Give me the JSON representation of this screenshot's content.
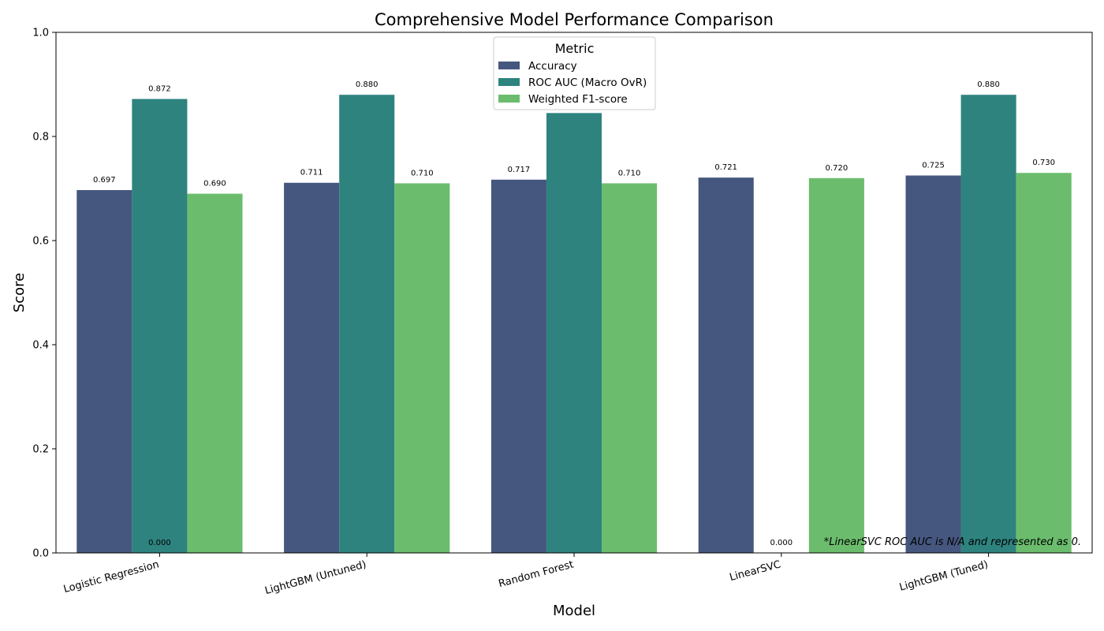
{
  "chart_data": {
    "type": "bar",
    "title": "Comprehensive Model Performance Comparison",
    "xlabel": "Model",
    "ylabel": "Score",
    "ylim": [
      0,
      1.0
    ],
    "yticks": [
      "0.0",
      "0.2",
      "0.4",
      "0.6",
      "0.8",
      "1.0"
    ],
    "grid": false,
    "legend_title": "Metric",
    "legend_placement": "top-center",
    "categories": [
      "Logistic Regression",
      "LightGBM (Untuned)",
      "Random Forest",
      "LinearSVC",
      "LightGBM (Tuned)"
    ],
    "series": [
      {
        "name": "Accuracy",
        "color": "#46577f",
        "values": [
          0.697,
          0.711,
          0.717,
          0.721,
          0.725
        ],
        "labels": [
          "0.697",
          "0.711",
          "0.717",
          "0.721",
          "0.725"
        ]
      },
      {
        "name": "ROC AUC (Macro OvR)",
        "color": "#2e837f",
        "values": [
          0.872,
          0.88,
          0.845,
          0.0,
          0.88
        ],
        "labels": [
          "0.872",
          "0.880",
          "",
          "0.000",
          "0.880"
        ]
      },
      {
        "name": "Weighted F1-score",
        "color": "#6bbd6d",
        "values": [
          0.69,
          0.71,
          0.71,
          0.72,
          0.73
        ],
        "labels": [
          "0.690",
          "0.710",
          "0.710",
          "0.720",
          "0.730"
        ]
      }
    ],
    "extra_labels": [
      {
        "category": 0,
        "text": "0.000"
      }
    ],
    "annotation": "*LinearSVC ROC AUC is N/A and represented as 0."
  }
}
